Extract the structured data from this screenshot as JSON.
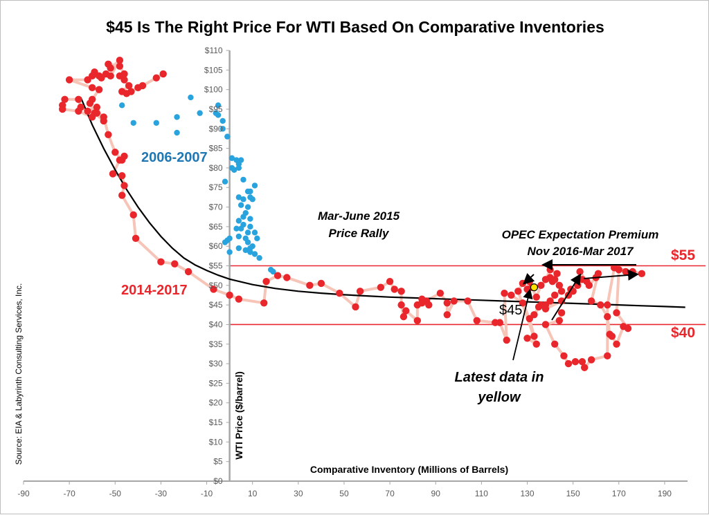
{
  "chart_data": {
    "type": "scatter",
    "title": "$45 Is The Right Price For WTI Based On Comparative Inventories",
    "xlabel": "Comparative Inventory (Millions of Barrels)",
    "ylabel": "WTI Price ($/barrel)",
    "source": "Source: EIA & Labyrinth Consulting Services, Inc.",
    "xlim": [
      -90,
      200
    ],
    "ylim": [
      0,
      110
    ],
    "x_ticks": [
      -90,
      -70,
      -50,
      -30,
      -10,
      10,
      30,
      50,
      70,
      90,
      110,
      130,
      150,
      170,
      190
    ],
    "y_ticks": [
      0,
      5,
      10,
      15,
      20,
      25,
      30,
      35,
      40,
      45,
      50,
      55,
      60,
      65,
      70,
      75,
      80,
      85,
      90,
      95,
      100,
      105,
      110
    ],
    "y_tick_prefix": "$",
    "grid": false,
    "colors": {
      "series_2006": "#29a3dd",
      "series_2014": "#e8262b",
      "path_2014": "#f7c4b8",
      "fit": "#000000",
      "latest": "#ffe100",
      "price_lines": "#e8262b"
    },
    "price_lines": [
      {
        "y": 55,
        "label": "$55"
      },
      {
        "y": 40,
        "label": "$40"
      }
    ],
    "fit_curve": [
      [
        -65,
        98
      ],
      [
        -60,
        91
      ],
      [
        -55,
        85
      ],
      [
        -50,
        79.5
      ],
      [
        -45,
        74.5
      ],
      [
        -40,
        70
      ],
      [
        -35,
        66
      ],
      [
        -30,
        62.5
      ],
      [
        -25,
        59.5
      ],
      [
        -20,
        57
      ],
      [
        -15,
        55.2
      ],
      [
        -10,
        53.8
      ],
      [
        -5,
        52.6
      ],
      [
        0,
        51.6
      ],
      [
        10,
        50.2
      ],
      [
        20,
        49.2
      ],
      [
        30,
        48.5
      ],
      [
        40,
        48
      ],
      [
        50,
        47.6
      ],
      [
        60,
        47.3
      ],
      [
        70,
        47
      ],
      [
        80,
        46.8
      ],
      [
        90,
        46.6
      ],
      [
        100,
        46.4
      ],
      [
        110,
        46.2
      ],
      [
        120,
        46
      ],
      [
        130,
        45.8
      ],
      [
        140,
        45.6
      ],
      [
        150,
        45.4
      ],
      [
        160,
        45.2
      ],
      [
        170,
        45
      ],
      [
        180,
        44.8
      ],
      [
        190,
        44.6
      ],
      [
        199,
        44.4
      ]
    ],
    "series": [
      {
        "name": "2006-2007",
        "points": [
          [
            -47,
            96
          ],
          [
            -42,
            91.5
          ],
          [
            -32,
            91.5
          ],
          [
            -23,
            89
          ],
          [
            -23,
            93
          ],
          [
            -17,
            98
          ],
          [
            -13,
            94
          ],
          [
            -6,
            94
          ],
          [
            -5,
            96
          ],
          [
            -5,
            93.5
          ],
          [
            -3,
            90
          ],
          [
            -3,
            92
          ],
          [
            -1,
            88
          ],
          [
            1,
            82.5
          ],
          [
            3,
            82
          ],
          [
            4,
            81
          ],
          [
            5,
            82
          ],
          [
            4,
            80
          ],
          [
            2,
            79.5
          ],
          [
            1,
            80
          ],
          [
            -2,
            76.5
          ],
          [
            6,
            77
          ],
          [
            9,
            74
          ],
          [
            11,
            75.5
          ],
          [
            8,
            74
          ],
          [
            4,
            72.5
          ],
          [
            6,
            72
          ],
          [
            9,
            72.5
          ],
          [
            10,
            72
          ],
          [
            8,
            70
          ],
          [
            5,
            70.5
          ],
          [
            7,
            68.5
          ],
          [
            6,
            67.5
          ],
          [
            4,
            66.5
          ],
          [
            9,
            67
          ],
          [
            6,
            65.5
          ],
          [
            9,
            65
          ],
          [
            5,
            64.5
          ],
          [
            3,
            64.5
          ],
          [
            8,
            63.5
          ],
          [
            11,
            63.5
          ],
          [
            12,
            62
          ],
          [
            7,
            62
          ],
          [
            4,
            62.5
          ],
          [
            0,
            62
          ],
          [
            -1,
            61.5
          ],
          [
            -2,
            61
          ],
          [
            8,
            61
          ],
          [
            10,
            60
          ],
          [
            9,
            59.5
          ],
          [
            7,
            59
          ],
          [
            4,
            59.5
          ],
          [
            0,
            58.5
          ],
          [
            9,
            58.5
          ],
          [
            11,
            58
          ],
          [
            13,
            57
          ],
          [
            18,
            54
          ],
          [
            19,
            53.5
          ]
        ]
      },
      {
        "name": "2014-2017",
        "points": [
          [
            -29,
            104
          ],
          [
            -32,
            103
          ],
          [
            -38,
            101
          ],
          [
            -40,
            100.5
          ],
          [
            -43,
            99.5
          ],
          [
            -45,
            99
          ],
          [
            -47,
            99.5
          ],
          [
            -44,
            101
          ],
          [
            -46,
            102.5
          ],
          [
            -48,
            103.5
          ],
          [
            -46,
            104
          ],
          [
            -48,
            106
          ],
          [
            -53,
            106.5
          ],
          [
            -52,
            105.5
          ],
          [
            -48,
            107.5
          ],
          [
            -52,
            103.5
          ],
          [
            -54,
            104
          ],
          [
            -57,
            103.5
          ],
          [
            -56,
            103
          ],
          [
            -59,
            104.5
          ],
          [
            -60,
            103.5
          ],
          [
            -62,
            102.5
          ],
          [
            -70,
            102.5
          ],
          [
            -60,
            100.5
          ],
          [
            -57,
            100
          ],
          [
            -60,
            97.5
          ],
          [
            -61,
            96.5
          ],
          [
            -59,
            94
          ],
          [
            -55,
            92
          ],
          [
            -58,
            95.5
          ],
          [
            -62,
            94.5
          ],
          [
            -65,
            95.5
          ],
          [
            -66,
            97.5
          ],
          [
            -72,
            97.5
          ],
          [
            -73,
            96
          ],
          [
            -73,
            95
          ],
          [
            -66,
            94.5
          ],
          [
            -60,
            93
          ],
          [
            -58,
            94
          ],
          [
            -55,
            93
          ],
          [
            -53,
            88.5
          ],
          [
            -50,
            84
          ],
          [
            -47,
            82
          ],
          [
            -46,
            83
          ],
          [
            -48,
            82
          ],
          [
            -51,
            78.5
          ],
          [
            -47,
            78
          ],
          [
            -46,
            75.5
          ],
          [
            -47,
            73
          ],
          [
            -42,
            68
          ],
          [
            -41,
            62
          ],
          [
            -30,
            56
          ],
          [
            -24,
            55.5
          ],
          [
            -18,
            53.5
          ],
          [
            -7,
            49
          ],
          [
            0,
            47.5
          ],
          [
            4,
            46.5
          ],
          [
            15,
            45.5
          ],
          [
            16,
            51
          ],
          [
            21,
            52.5
          ],
          [
            25,
            52
          ],
          [
            35,
            50
          ],
          [
            40,
            50.5
          ],
          [
            48,
            48
          ],
          [
            55,
            44.5
          ],
          [
            57,
            48.5
          ],
          [
            66,
            49.5
          ],
          [
            70,
            51
          ],
          [
            72,
            49
          ],
          [
            75,
            48.5
          ],
          [
            75,
            45
          ],
          [
            76,
            42
          ],
          [
            77,
            43.5
          ],
          [
            82,
            41
          ],
          [
            82,
            45
          ],
          [
            84,
            46.5
          ],
          [
            86,
            46
          ],
          [
            87,
            45
          ],
          [
            84,
            45.5
          ],
          [
            92,
            48
          ],
          [
            95,
            45.5
          ],
          [
            95,
            42.5
          ],
          [
            98,
            46
          ],
          [
            104,
            46
          ],
          [
            108,
            41
          ],
          [
            116,
            40.5
          ],
          [
            118,
            40.5
          ],
          [
            121,
            36
          ],
          [
            120,
            48
          ],
          [
            123,
            47.5
          ],
          [
            128,
            45.5
          ],
          [
            131,
            41.5
          ],
          [
            133,
            37
          ],
          [
            130,
            36.5
          ],
          [
            134,
            35
          ],
          [
            126,
            48.5
          ],
          [
            128,
            50.5
          ],
          [
            131,
            51
          ],
          [
            130,
            49
          ],
          [
            132,
            49.5
          ],
          [
            134,
            47
          ],
          [
            136,
            50
          ],
          [
            140,
            52
          ],
          [
            141,
            51
          ],
          [
            138,
            51.5
          ],
          [
            140,
            54
          ],
          [
            143,
            53
          ],
          [
            142,
            51.5
          ],
          [
            144,
            50
          ],
          [
            145,
            48.5
          ],
          [
            142,
            47.5
          ],
          [
            140,
            46
          ],
          [
            138,
            45
          ],
          [
            135,
            44.5
          ],
          [
            133,
            42.5
          ],
          [
            136,
            45
          ],
          [
            138,
            44
          ],
          [
            145,
            46
          ],
          [
            148,
            47.5
          ],
          [
            149,
            49
          ],
          [
            150,
            48.5
          ],
          [
            152,
            50
          ],
          [
            154,
            51.5
          ],
          [
            153,
            53.5
          ],
          [
            156,
            51
          ],
          [
            157,
            50
          ],
          [
            160,
            52
          ],
          [
            161,
            53
          ],
          [
            158,
            46
          ],
          [
            162,
            45
          ],
          [
            165,
            42
          ],
          [
            166,
            37.5
          ],
          [
            167,
            37
          ],
          [
            169,
            35
          ],
          [
            172,
            39.5
          ],
          [
            174,
            39
          ],
          [
            169,
            43
          ],
          [
            170,
            54
          ],
          [
            173,
            53.5
          ],
          [
            176,
            53.5
          ],
          [
            180,
            53
          ],
          [
            168,
            54.5
          ],
          [
            165,
            45
          ],
          [
            165,
            32
          ],
          [
            158,
            31
          ],
          [
            155,
            29
          ],
          [
            154,
            30.5
          ],
          [
            151,
            30.5
          ],
          [
            148,
            30
          ],
          [
            146,
            32
          ],
          [
            142,
            35
          ],
          [
            138,
            40
          ],
          [
            144,
            41
          ],
          [
            145,
            43
          ]
        ]
      }
    ],
    "latest_point": [
      133,
      49.5
    ],
    "annotations": {
      "label_2006": "2006-2007",
      "label_2014": "2014-2017",
      "rally_line1": "Mar-June 2015",
      "rally_line2": "Price Rally",
      "opec_line1": "OPEC Expectation Premium",
      "opec_line2": "Nov 2016-Mar 2017",
      "latest_line1": "Latest data in",
      "latest_line2": "yellow",
      "label_45": "$45"
    }
  }
}
